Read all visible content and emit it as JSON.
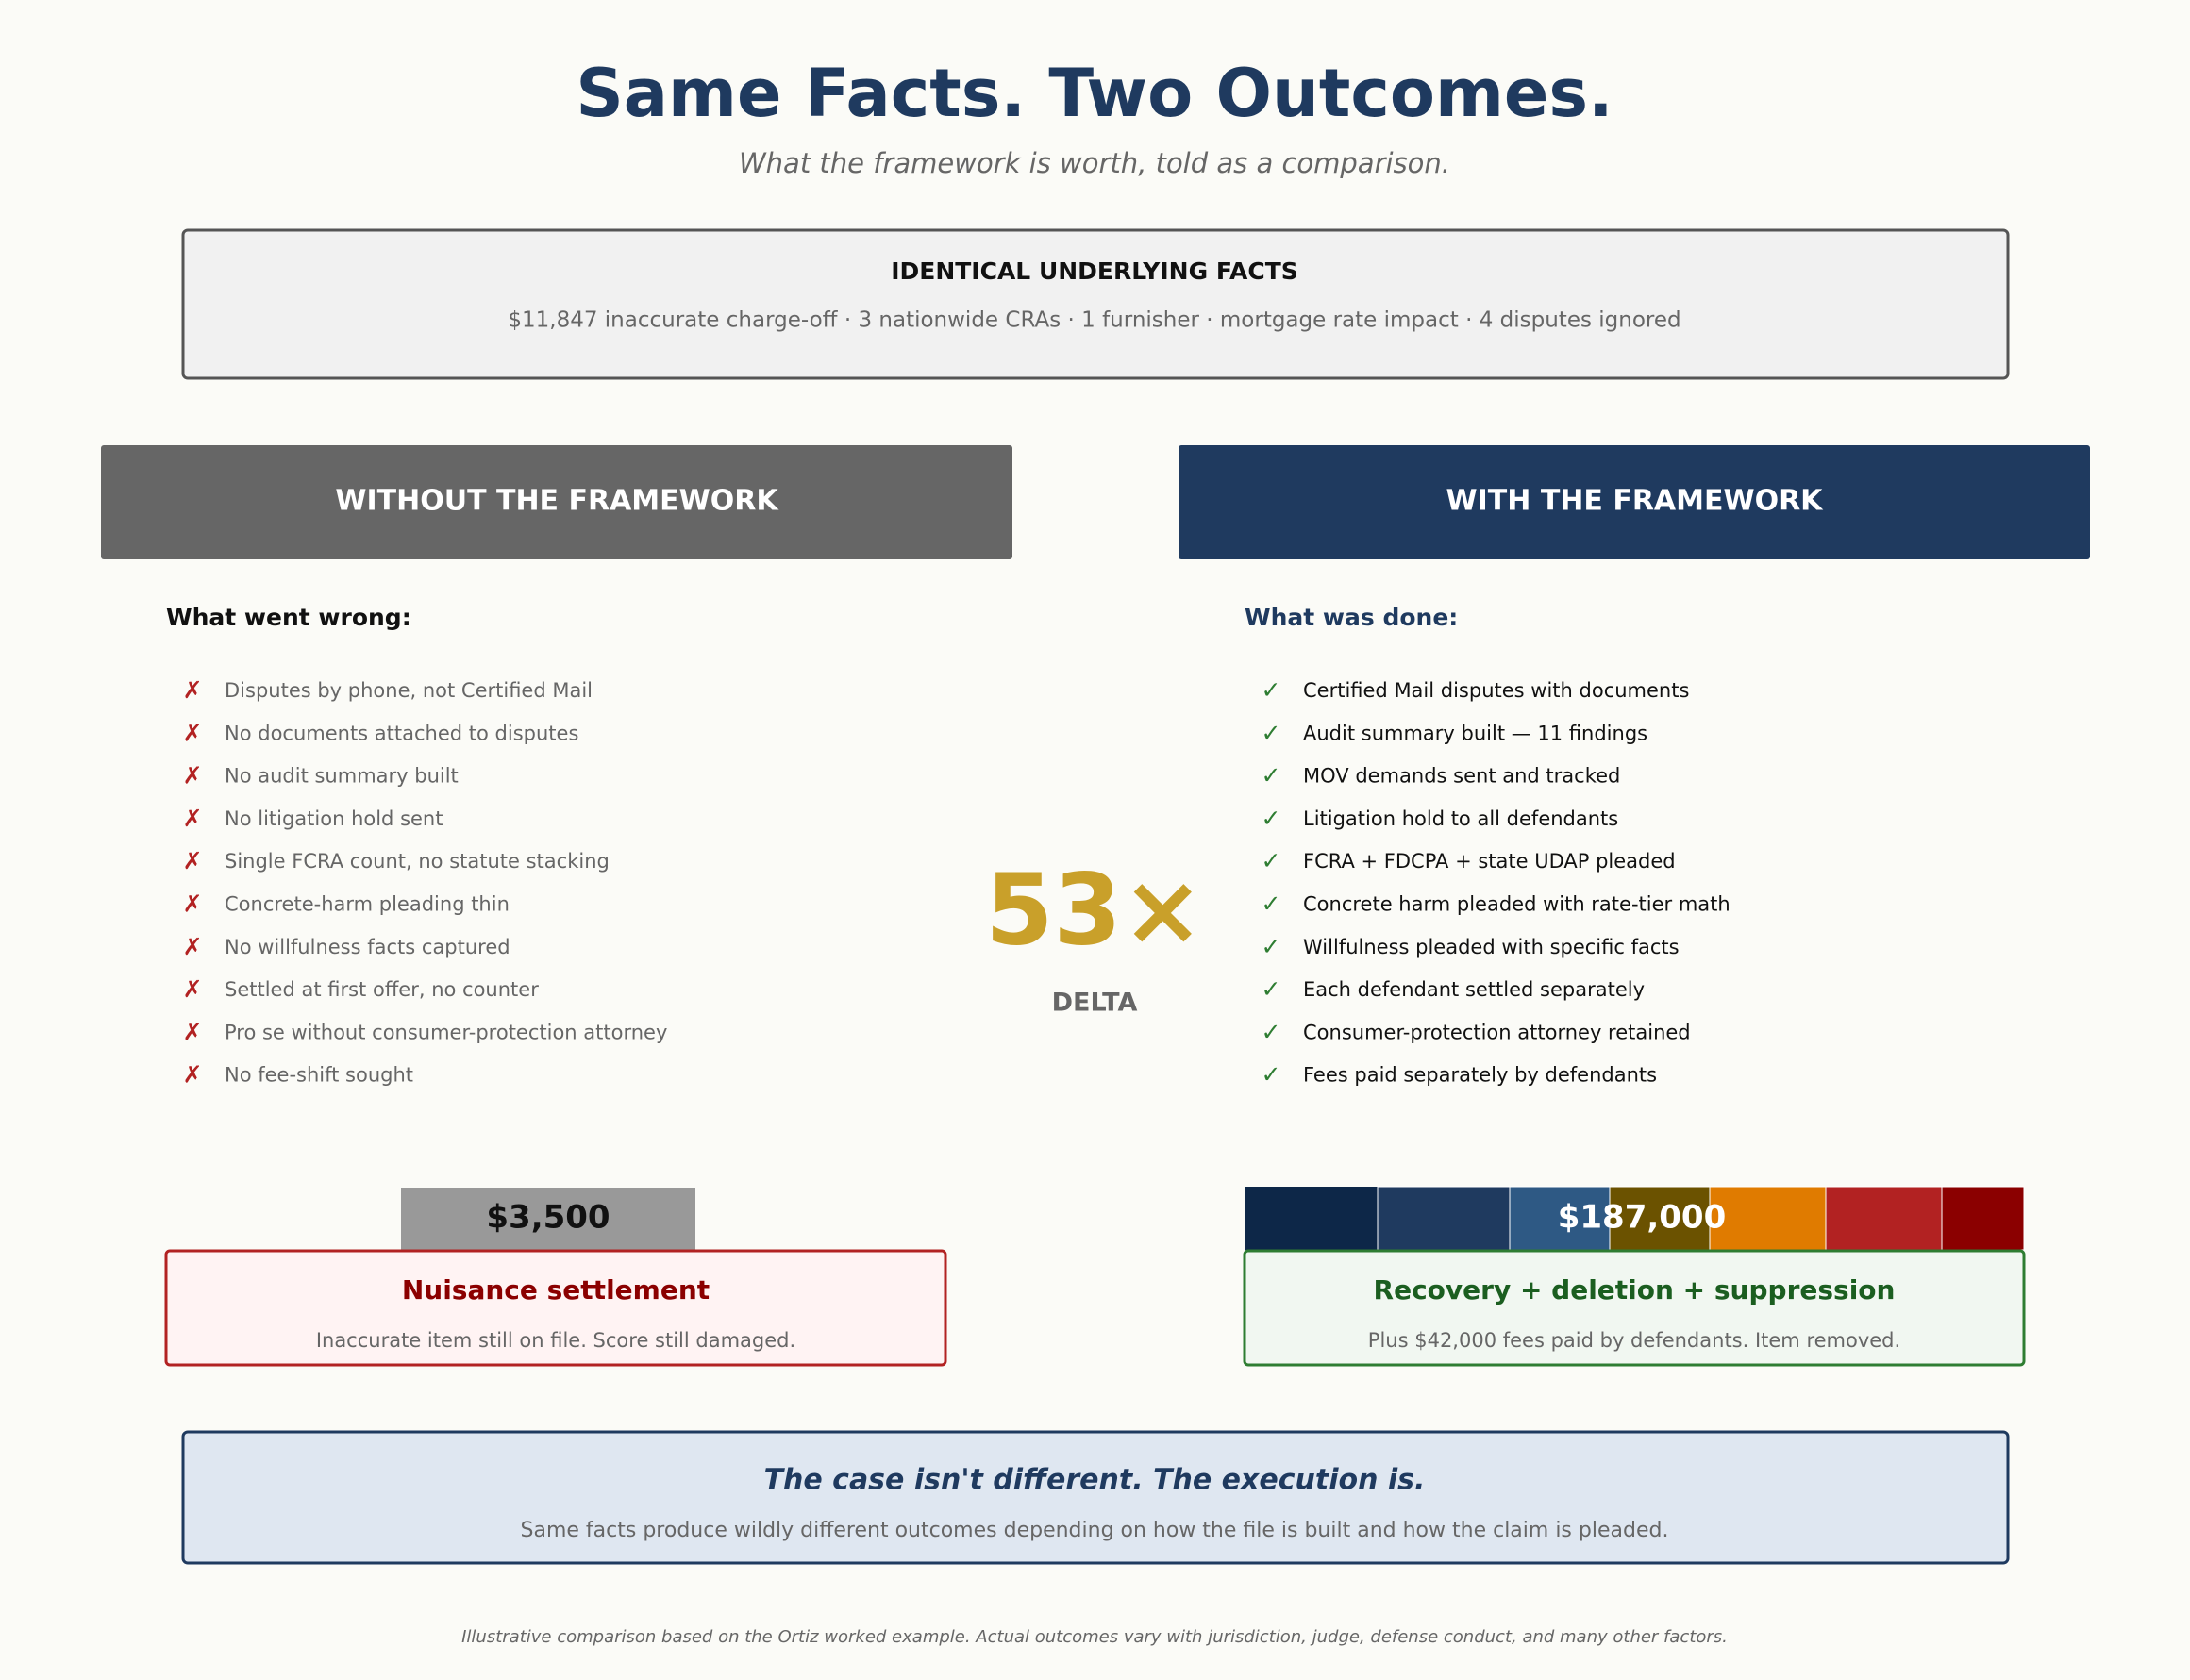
{
  "header": {
    "title": "Same Facts. Two Outcomes.",
    "subtitle": "What the framework is worth, told as a comparison."
  },
  "facts": {
    "heading": "IDENTICAL UNDERLYING FACTS",
    "text": "$11,847 inaccurate charge-off · 3 nationwide CRAs · 1 furnisher · mortgage rate impact · 4 disputes ignored"
  },
  "without": {
    "header": "WITHOUT THE FRAMEWORK",
    "subheading": "What went wrong:",
    "items": [
      "Disputes by phone, not Certified Mail",
      "No documents attached to disputes",
      "No audit summary built",
      "No litigation hold sent",
      "Single FCRA count, no statute stacking",
      "Concrete-harm pleading thin",
      "No willfulness facts captured",
      "Settled at first offer, no counter",
      "Pro se without consumer-protection attorney",
      "No fee-shift sought"
    ],
    "amount": "$3,500",
    "outcome_title": "Nuisance settlement",
    "outcome_text": "Inaccurate item still on file. Score still damaged."
  },
  "with": {
    "header": "WITH THE FRAMEWORK",
    "subheading": "What was done:",
    "items": [
      "Certified Mail disputes with documents",
      "Audit summary built — 11 findings",
      "MOV demands sent and tracked",
      "Litigation hold to all defendants",
      "FCRA + FDCPA + state UDAP pleaded",
      "Concrete harm pleaded with rate-tier math",
      "Willfulness pleaded with specific facts",
      "Each defendant settled separately",
      "Consumer-protection attorney retained",
      "Fees paid separately by defendants"
    ],
    "amount": "$187,000",
    "outcome_title": "Recovery + deletion + suppression",
    "outcome_text": "Plus $42,000 fees paid by defendants. Item removed."
  },
  "delta": {
    "value": "53×",
    "label": "DELTA"
  },
  "conclusion": {
    "title": "The case isn't different. The execution is.",
    "text": "Same facts produce wildly different outcomes depending on how the file is built and how the claim is pleaded."
  },
  "footnote": "Illustrative comparison based on the Ortiz worked example. Actual outcomes vary with jurisdiction, judge, defense conduct, and many other factors."
}
